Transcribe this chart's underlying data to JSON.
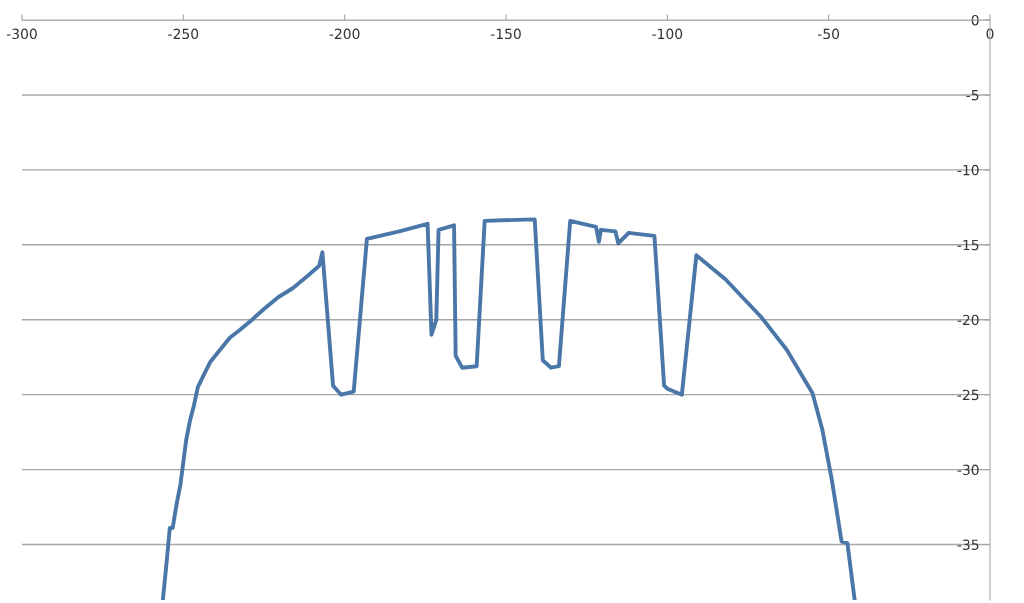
{
  "chart_data": {
    "type": "line",
    "x": [
      -256.3,
      -255.1,
      -254.2,
      -253.3,
      -252.1,
      -250.9,
      -250,
      -249.1,
      -247.9,
      -246.7,
      -245.5,
      -243.7,
      -241.6,
      -238.6,
      -235.6,
      -232.6,
      -228.7,
      -225.1,
      -220.6,
      -216.1,
      -211.6,
      -207.9,
      -206.9,
      -203.6,
      -201.1,
      -197.2,
      -193.1,
      -183.1,
      -176.1,
      -174.3,
      -173.1,
      -171.6,
      -170.9,
      -166.1,
      -165.6,
      -163.6,
      -159.1,
      -156.6,
      -141.1,
      -138.6,
      -136.1,
      -133.6,
      -130.1,
      -122.1,
      -121.2,
      -120.6,
      -116.1,
      -115.2,
      -112,
      -104,
      -101,
      -100,
      -95.5,
      -91,
      -82,
      -71,
      -63,
      -55,
      -52,
      -49,
      -46,
      -44.2,
      -42
    ],
    "series": [
      {
        "color": "#4a77a8",
        "values": [
          -38.6,
          -36,
          -33.9,
          -33.9,
          -32.3,
          -31,
          -29.5,
          -28,
          -26.7,
          -25.7,
          -24.5,
          -23.7,
          -22.8,
          -22,
          -21.2,
          -20.7,
          -20,
          -19.3,
          -18.5,
          -17.9,
          -17.1,
          -16.4,
          -15.5,
          -24.4,
          -25,
          -24.8,
          -14.6,
          -14.1,
          -13.7,
          -13.6,
          -21,
          -20,
          -14,
          -13.7,
          -22.4,
          -23.2,
          -23.1,
          -13.4,
          -13.3,
          -22.7,
          -23.2,
          -23.1,
          -13.4,
          -13.8,
          -14.8,
          -14,
          -14.1,
          -14.9,
          -14.2,
          -14.4,
          -24.4,
          -24.6,
          -25,
          -15.7,
          -17.3,
          -19.8,
          -22,
          -24.9,
          -27.3,
          -30.7,
          -34.8,
          -34.9,
          -38.6
        ]
      }
    ],
    "xlim": [
      -300,
      0
    ],
    "xticks": [
      -300,
      -250,
      -200,
      -150,
      -100,
      -50,
      0
    ],
    "ylim": [
      -38.7,
      0
    ],
    "yticks": [
      0,
      -5,
      -10,
      -15,
      -20,
      -25,
      -30,
      -35
    ],
    "grid": "y",
    "marker": "none",
    "line_style": "solid"
  }
}
